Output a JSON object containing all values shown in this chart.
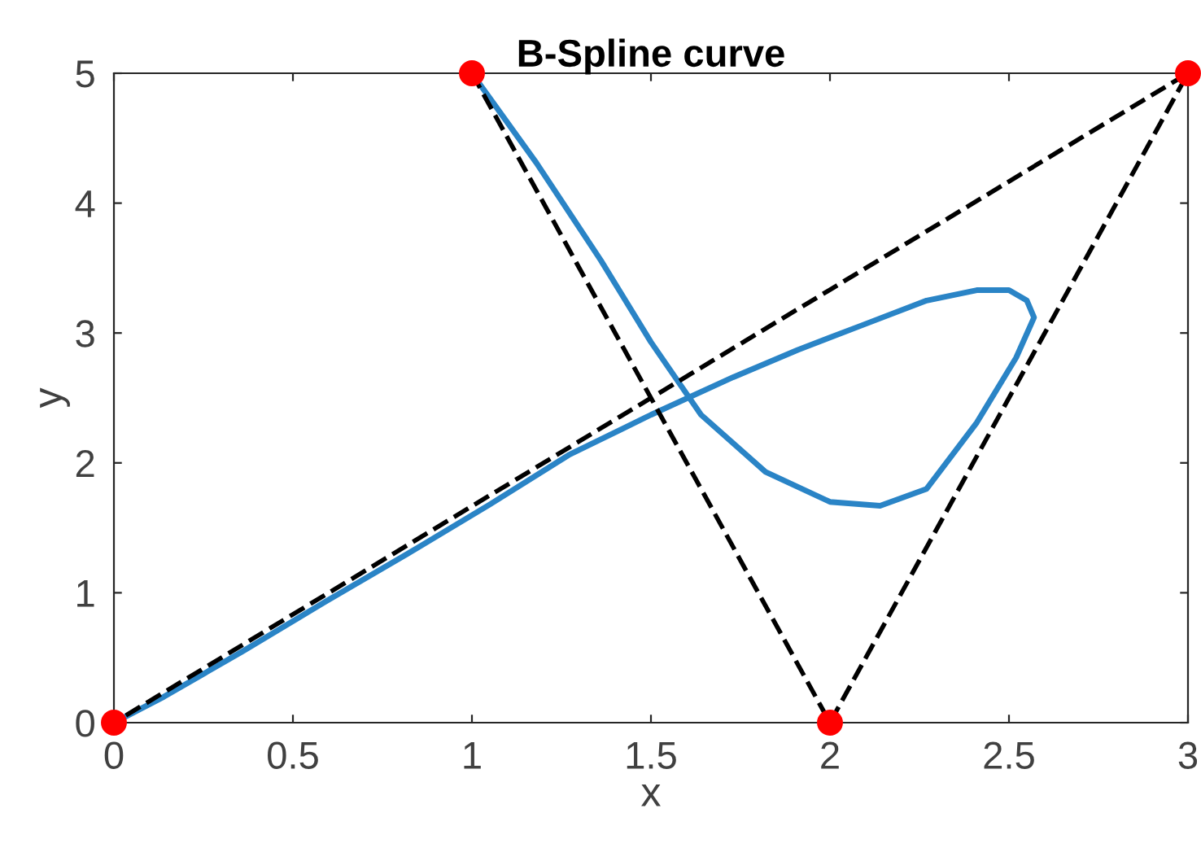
{
  "chart_data": {
    "type": "line",
    "title": "B-Spline curve",
    "xlabel": "x",
    "ylabel": "y",
    "xlim": [
      0,
      3
    ],
    "ylim": [
      0,
      5
    ],
    "xticks": [
      0,
      0.5,
      1,
      1.5,
      2,
      2.5,
      3
    ],
    "yticks": [
      0,
      1,
      2,
      3,
      4,
      5
    ],
    "grid": false,
    "legend": false,
    "series": [
      {
        "color": "#2a84c6",
        "line_style": "solid",
        "marker": "none",
        "x": [
          1,
          1.18,
          1.36,
          1.5,
          1.64,
          1.82,
          2.0,
          2.14,
          2.27,
          2.41,
          2.52,
          2.57,
          2.55,
          2.5,
          2.41,
          2.27,
          2.09,
          1.91,
          1.73,
          1.5,
          1.27,
          1.05,
          0.82,
          0.59,
          0.36,
          0.14,
          0
        ],
        "values": [
          5,
          4.31,
          3.56,
          2.93,
          2.37,
          1.93,
          1.7,
          1.67,
          1.8,
          2.31,
          2.81,
          3.12,
          3.25,
          3.33,
          3.33,
          3.25,
          3.06,
          2.87,
          2.66,
          2.37,
          2.06,
          1.68,
          1.3,
          0.93,
          0.55,
          0.2,
          0
        ]
      },
      {
        "color": "#000000",
        "line_style": "dashed",
        "marker": "none",
        "x": [
          1,
          2,
          3,
          0
        ],
        "values": [
          5,
          0,
          5,
          0
        ]
      },
      {
        "type": "scatter",
        "color": "#ff0000",
        "marker": "circle",
        "x": [
          1,
          2,
          3,
          0
        ],
        "values": [
          5,
          0,
          5,
          0
        ]
      }
    ]
  }
}
